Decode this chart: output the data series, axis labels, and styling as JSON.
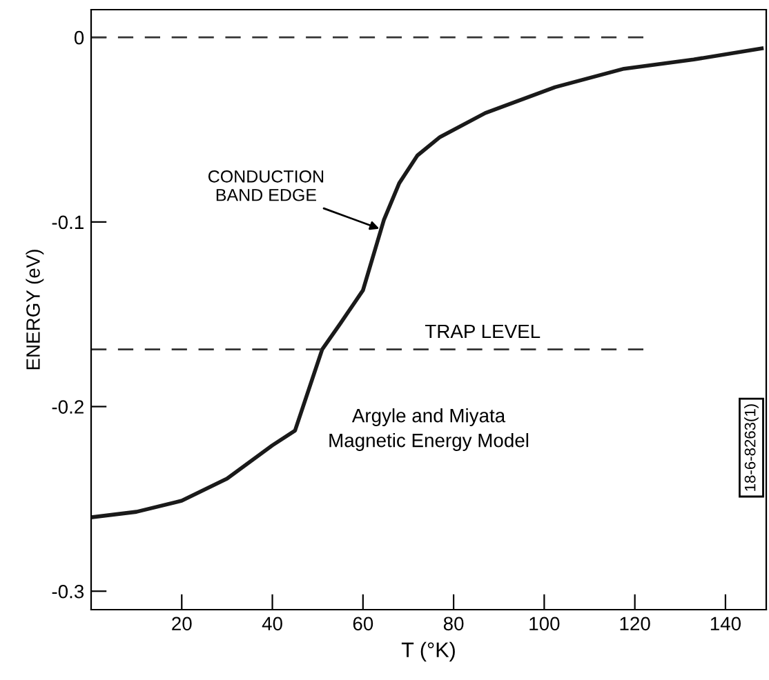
{
  "chart_data": {
    "type": "line",
    "xlabel": "T (°K)",
    "ylabel": "ENERGY (eV)",
    "x": [
      0,
      10,
      20,
      30,
      40,
      45,
      51,
      55,
      60,
      64,
      64.6,
      68,
      72,
      77,
      87,
      102.4,
      117.6,
      133,
      148
    ],
    "series": [
      {
        "color": "#1a1a1a",
        "values": [
          -0.26,
          -0.257,
          -0.251,
          -0.239,
          -0.221,
          -0.213,
          -0.169,
          -0.155,
          -0.137,
          -0.104,
          -0.099,
          -0.079,
          -0.064,
          -0.054,
          -0.041,
          -0.027,
          -0.017,
          -0.012,
          -0.006
        ]
      }
    ],
    "xlim": [
      0,
      149
    ],
    "ylim": [
      -0.31,
      0.015
    ],
    "xticks": [
      20,
      40,
      60,
      80,
      100,
      120,
      140
    ],
    "yticks": [
      {
        "value": 0,
        "label": "0"
      },
      {
        "value": -0.1,
        "label": "-0.1"
      },
      {
        "value": -0.2,
        "label": "-0.2"
      },
      {
        "value": -0.3,
        "label": "-0.3"
      }
    ],
    "ref_lines": [
      {
        "axis": "y",
        "value": 0,
        "label": null,
        "color": "#333333",
        "line_style": "dashed"
      },
      {
        "axis": "y",
        "value": -0.169,
        "label": "TRAP LEVEL",
        "color": "#333333",
        "line_style": "dashed"
      }
    ],
    "annotations": [
      {
        "text": "CONDUCTION\nBAND EDGE",
        "x": 64,
        "y": -0.104
      },
      "Argyle and Miyata\nMagnetic Energy Model",
      "18-6-8263(1)"
    ],
    "grid": false,
    "legend": false,
    "marker": "none",
    "line_style": "solid"
  }
}
